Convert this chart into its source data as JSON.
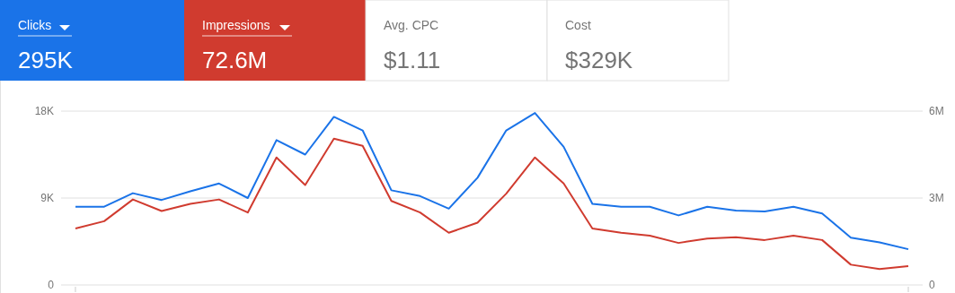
{
  "chart_data": [
    {
      "type": "other",
      "annotations": [
        "Clicks",
        "295K",
        "Impressions",
        "72.6M",
        "Avg. CPC",
        "$1.11",
        "Cost",
        "$329K"
      ]
    },
    {
      "type": "line",
      "categories": [
        null,
        null,
        null,
        null,
        null,
        null,
        null,
        null,
        null,
        null,
        null,
        null,
        null,
        null,
        null,
        null,
        null,
        null,
        null,
        null,
        null,
        null,
        null,
        null,
        null,
        null,
        null,
        null,
        null,
        null
      ],
      "series": [
        {
          "color": "#1a73e8",
          "values": [
            8100,
            8100,
            9500,
            8800,
            9700,
            10500,
            9000,
            15000,
            13500,
            17400,
            16000,
            9800,
            9200,
            7900,
            11100,
            16000,
            17800,
            14300,
            8400,
            8100,
            8100,
            7200,
            8100,
            7700,
            7600,
            8100,
            7400,
            4900,
            4400,
            3700
          ]
        },
        {
          "color": "#d03b2f",
          "axis": "y2",
          "values": [
            1950000,
            2200000,
            2950000,
            2550000,
            2800000,
            2950000,
            2500000,
            4400000,
            3450000,
            5050000,
            4800000,
            2900000,
            2500000,
            1800000,
            2150000,
            3150000,
            4400000,
            3500000,
            1950000,
            1800000,
            1700000,
            1450000,
            1600000,
            1650000,
            1550000,
            1700000,
            1550000,
            700000,
            550000,
            650000
          ]
        }
      ],
      "ylim": [
        0,
        18000
      ],
      "yticks": [
        0,
        {
          "value": 9000,
          "label": "9K"
        },
        {
          "value": 18000,
          "label": "18K"
        }
      ],
      "y2lim": [
        0,
        6000000
      ],
      "y2ticks": [
        0,
        {
          "value": 3000000,
          "label": "3M"
        },
        {
          "value": 6000000,
          "label": "6M"
        }
      ],
      "grid": "y",
      "marker": "none",
      "line_style": "solid"
    }
  ]
}
